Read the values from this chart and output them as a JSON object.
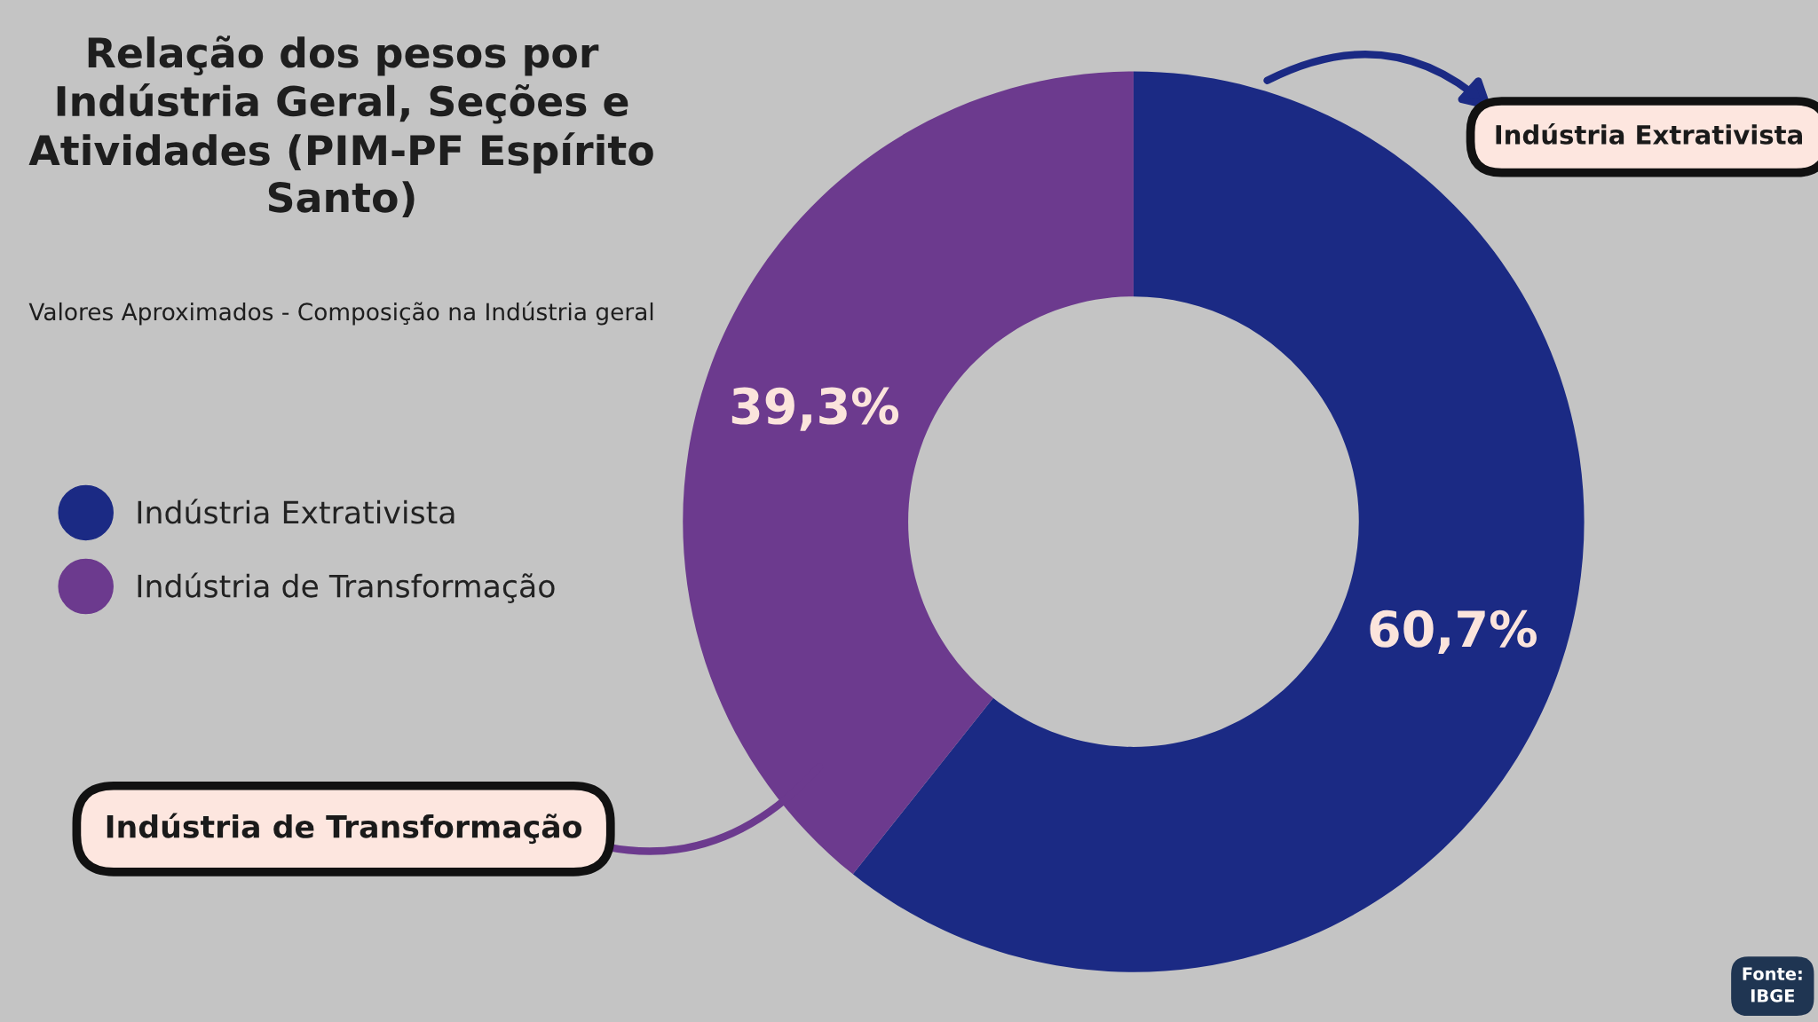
{
  "chart_data": {
    "type": "donut",
    "title": "Relação dos pesos por Indústria Geral, Seções e Atividades (PIM-PF Espírito Santo)",
    "subtitle": "Valores Aproximados - Composição na Indústria geral",
    "categories": [
      "Indústria Extrativista",
      "Indústria de Transformação"
    ],
    "values": [
      60.7,
      39.3
    ],
    "colors": [
      "#1b2a84",
      "#6c3a8e"
    ],
    "value_labels": [
      "60,7%",
      "39,3%"
    ],
    "legend": "left",
    "annotations": [
      "Indústria Extrativista",
      "Indústria de Transformação",
      "Fonte:\nIBGE"
    ]
  }
}
